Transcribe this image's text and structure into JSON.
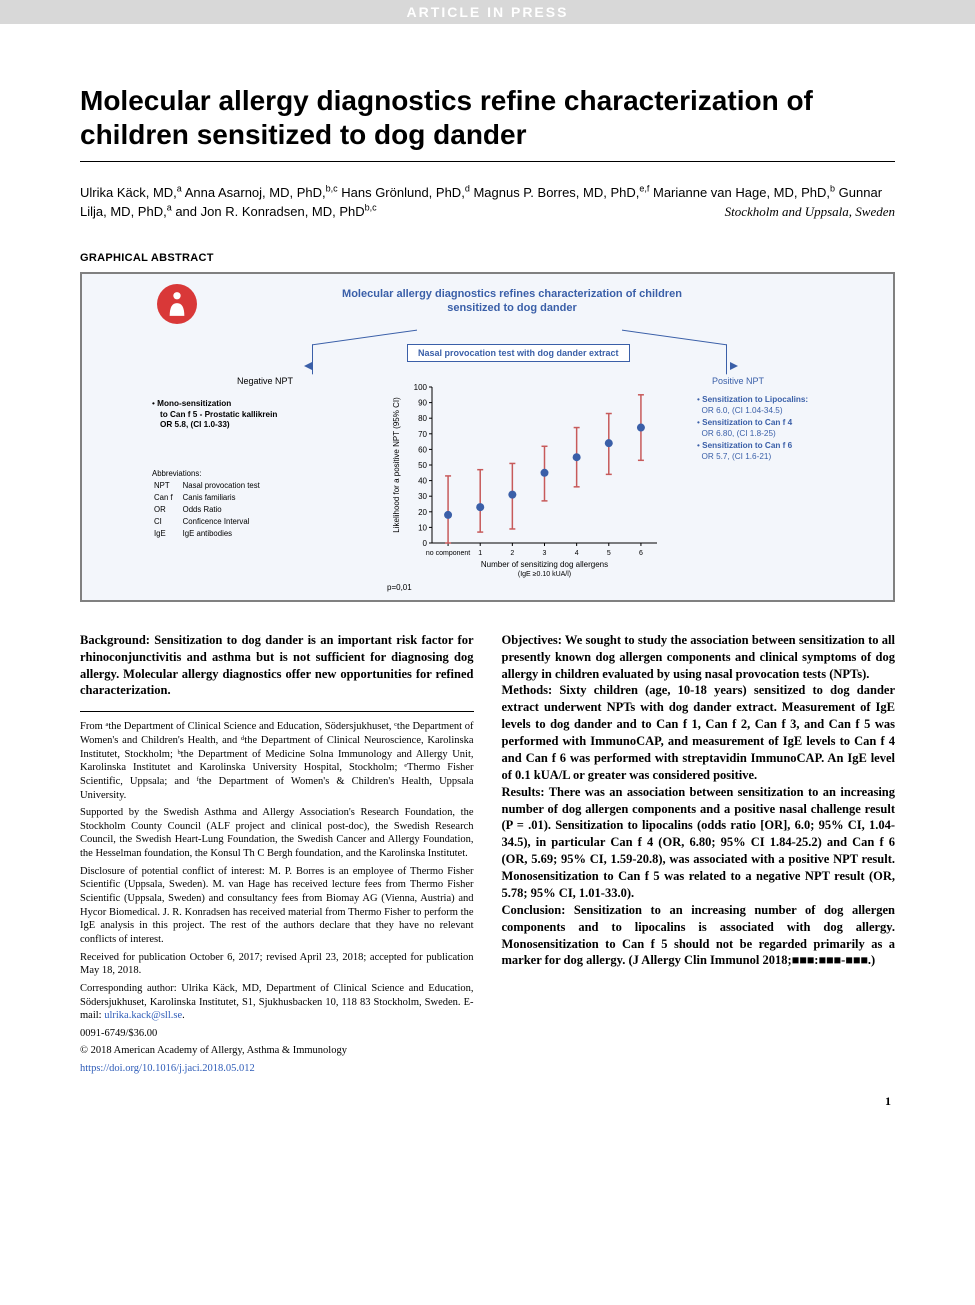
{
  "header_bar": "ARTICLE IN PRESS",
  "title": "Molecular allergy diagnostics refine characterization of children sensitized to dog dander",
  "authors_html": "Ulrika Käck, MD,ᵃ Anna Asarnoj, MD, PhD,ᵇ·ᶜ Hans Grönlund, PhD,ᵈ Magnus P. Borres, MD, PhD,ᵉ·ᶠ Marianne van Hage, MD, PhD,ᵇ Gunnar Lilja, MD, PhD,ᵃ and Jon R. Konradsen, MD, PhDᵇ·ᶜ",
  "affiliation_location": "Stockholm and Uppsala, Sweden",
  "graphical_abstract_heading": "GRAPHICAL ABSTRACT",
  "ga": {
    "title": "Molecular allergy diagnostics refines characterization of children sensitized to dog dander",
    "nasal_box": "Nasal provocation test with dog dander extract",
    "negative_npt": "Negative NPT",
    "positive_npt": "Positive NPT",
    "left_mono_title": "Mono-sensitization",
    "left_mono_lines": "to Can f 5 - Prostatic kallikrein\nOR 5.8, (CI 1.0-33)",
    "right_items": [
      {
        "title": "Sensitization to Lipocalins:",
        "stat": "OR 6.0, (CI 1.04-34.5)"
      },
      {
        "title": "Sensitization to Can f 4",
        "stat": "OR 6.80, (CI 1.8-25)"
      },
      {
        "title": "Sensitization to Can f 6",
        "stat": "OR 5.7, (CI 1.6-21)"
      }
    ],
    "abbr_heading": "Abbreviations:",
    "abbreviations": [
      [
        "NPT",
        "Nasal provocation test"
      ],
      [
        "Can f",
        "Canis familiaris"
      ],
      [
        "OR",
        "Odds Ratio"
      ],
      [
        "CI",
        "Conficence Interval"
      ],
      [
        "IgE",
        "IgE antibodies"
      ]
    ],
    "chart": {
      "type": "errorbar-scatter",
      "ylabel": "Likelihood for a positive NPT (95% CI)",
      "xlabel_line1": "Number of sensitizing dog allergens",
      "xlabel_line2": "(IgE ≥0.10 kUA/l)",
      "x_categories": [
        "no component",
        "1",
        "2",
        "3",
        "4",
        "5",
        "6"
      ],
      "ylim": [
        0,
        100
      ],
      "yticks": [
        0,
        10,
        20,
        30,
        40,
        50,
        60,
        70,
        80,
        90,
        100
      ],
      "points": [
        {
          "x": 0,
          "y": 18,
          "lo": 0,
          "hi": 43
        },
        {
          "x": 1,
          "y": 23,
          "lo": 7,
          "hi": 47
        },
        {
          "x": 2,
          "y": 31,
          "lo": 9,
          "hi": 51
        },
        {
          "x": 3,
          "y": 45,
          "lo": 27,
          "hi": 62
        },
        {
          "x": 4,
          "y": 55,
          "lo": 36,
          "hi": 74
        },
        {
          "x": 5,
          "y": 64,
          "lo": 44,
          "hi": 83
        },
        {
          "x": 6,
          "y": 74,
          "lo": 53,
          "hi": 95
        }
      ],
      "marker_color": "#3a5fa8",
      "bar_color": "#c75a5a",
      "axis_color": "#000000",
      "background": "#f3f6fb",
      "marker_size": 4,
      "bar_width": 1.5,
      "font_size": 8
    },
    "pval": "p=0,01"
  },
  "abstract": {
    "background": "Background: Sensitization to dog dander is an important risk factor for rhinoconjunctivitis and asthma but is not sufficient for diagnosing dog allergy. Molecular allergy diagnostics offer new opportunities for refined characterization.",
    "objectives": "Objectives: We sought to study the association between sensitization to all presently known dog allergen components and clinical symptoms of dog allergy in children evaluated by using nasal provocation tests (NPTs).",
    "methods": "Methods: Sixty children (age, 10-18 years) sensitized to dog dander extract underwent NPTs with dog dander extract. Measurement of IgE levels to dog dander and to Can f 1, Can f 2, Can f 3, and Can f 5 was performed with ImmunoCAP, and measurement of IgE levels to Can f 4 and Can f 6 was performed with streptavidin ImmunoCAP. An IgE level of 0.1 kUA/L or greater was considered positive.",
    "results": "Results: There was an association between sensitization to an increasing number of dog allergen components and a positive nasal challenge result (P = .01). Sensitization to lipocalins (odds ratio [OR], 6.0; 95% CI, 1.04-34.5), in particular Can f 4 (OR, 6.80; 95% CI 1.84-25.2) and Can f 6 (OR, 5.69; 95% CI, 1.59-20.8), was associated with a positive NPT result. Monosensitization to Can f 5 was related to a negative NPT result (OR, 5.78; 95% CI, 1.01-33.0).",
    "conclusion": "Conclusion: Sensitization to an increasing number of dog allergen components and to lipocalins is associated with dog allergy. Monosensitization to Can f 5 should not be regarded primarily as a marker for dog allergy. (J Allergy Clin Immunol 2018;■■■:■■■-■■■.)"
  },
  "footnotes": {
    "from": "From ᵃthe Department of Clinical Science and Education, Södersjukhuset, ᶜthe Department of Women's and Children's Health, and ᵈthe Department of Clinical Neuroscience, Karolinska Institutet, Stockholm; ᵇthe Department of Medicine Solna Immunology and Allergy Unit, Karolinska Institutet and Karolinska University Hospital, Stockholm; ᵉThermo Fisher Scientific, Uppsala; and ᶠthe Department of Women's & Children's Health, Uppsala University.",
    "supported": "Supported by the Swedish Asthma and Allergy Association's Research Foundation, the Stockholm County Council (ALF project and clinical post-doc), the Swedish Research Council, the Swedish Heart-Lung Foundation, the Swedish Cancer and Allergy Foundation, the Hesselman foundation, the Konsul Th C Bergh foundation, and the Karolinska Institutet.",
    "disclosure": "Disclosure of potential conflict of interest: M. P. Borres is an employee of Thermo Fisher Scientific (Uppsala, Sweden). M. van Hage has received lecture fees from Thermo Fisher Scientific (Uppsala, Sweden) and consultancy fees from Biomay AG (Vienna, Austria) and Hycor Biomedical. J. R. Konradsen has received material from Thermo Fisher to perform the IgE analysis in this project. The rest of the authors declare that they have no relevant conflicts of interest.",
    "received": "Received for publication October 6, 2017; revised April 23, 2018; accepted for publication May 18, 2018.",
    "corresponding": "Corresponding author: Ulrika Käck, MD, Department of Clinical Science and Education, Södersjukhuset, Karolinska Institutet, S1, Sjukhusbacken 10, 118 83 Stockholm, Sweden. E-mail: ",
    "email": "ulrika.kack@sll.se",
    "issn": "0091-6749/$36.00",
    "copyright": "© 2018 American Academy of Allergy, Asthma & Immunology",
    "doi": "https://doi.org/10.1016/j.jaci.2018.05.012"
  },
  "page_number": "1"
}
